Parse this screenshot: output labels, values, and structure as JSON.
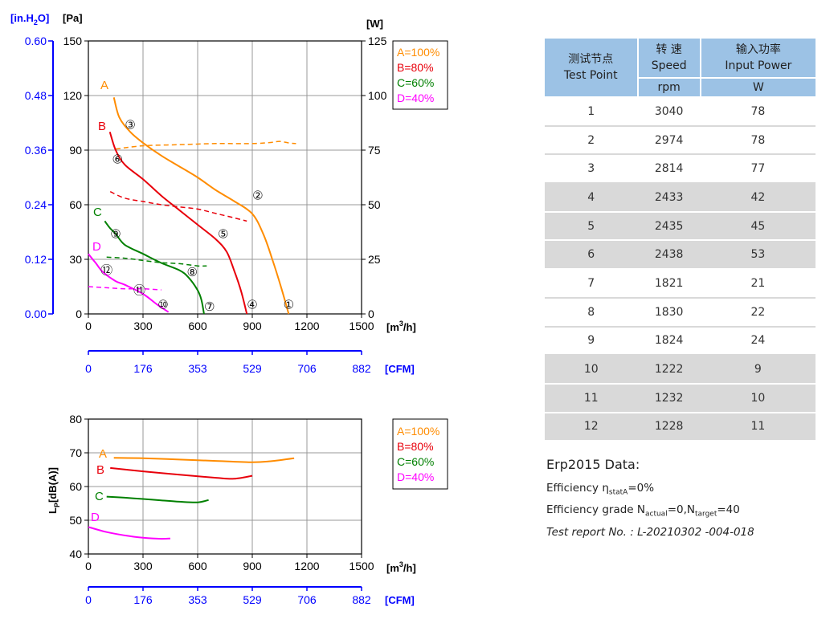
{
  "colors": {
    "A": "#ff8c00",
    "B": "#e8000b",
    "C": "#008000",
    "D": "#ff00ff",
    "axis_blue": "#0000ff",
    "header": "#9cc2e5",
    "shade": "#d9d9d9"
  },
  "chart_data": [
    {
      "type": "line",
      "title": "",
      "y_left_units": [
        "[in.H2O]",
        "[Pa]"
      ],
      "y_right_unit": "[W]",
      "x_unit": "[m3/h]",
      "x_secondary_unit": "[CFM]",
      "xlim": [
        0,
        1500
      ],
      "ylim_pa": [
        0,
        150
      ],
      "ylim_w": [
        0,
        125
      ],
      "ylim_inh2o": [
        0,
        0.6
      ],
      "x_ticks": [
        "0",
        "300",
        "600",
        "900",
        "1200",
        "1500"
      ],
      "x2_ticks": [
        "0",
        "176",
        "353",
        "529",
        "706",
        "882"
      ],
      "y_pa_ticks": [
        "0",
        "30",
        "60",
        "90",
        "120",
        "150"
      ],
      "y_in_ticks": [
        "0.00",
        "0.12",
        "0.24",
        "0.36",
        "0.48",
        "0.60"
      ],
      "y_w_ticks": [
        "0",
        "25",
        "50",
        "75",
        "100",
        "125"
      ],
      "grid": true,
      "legend": [
        "A=100%",
        "B=80%",
        "C=60%",
        "D=40%"
      ],
      "legend_position": "top-right",
      "series": [
        {
          "name": "A=100%",
          "pressure": [
            [
              140,
              119
            ],
            [
              170,
              108
            ],
            [
              230,
              100
            ],
            [
              300,
              94
            ],
            [
              400,
              87
            ],
            [
              500,
              81
            ],
            [
              600,
              75
            ],
            [
              700,
              68
            ],
            [
              800,
              62
            ],
            [
              900,
              55
            ],
            [
              960,
              44
            ],
            [
              1010,
              30
            ],
            [
              1060,
              14
            ],
            [
              1100,
              0
            ]
          ],
          "power": [
            [
              150,
              75.5
            ],
            [
              300,
              77
            ],
            [
              500,
              77.5
            ],
            [
              700,
              78
            ],
            [
              900,
              78
            ],
            [
              1000,
              78.5
            ],
            [
              1050,
              79
            ],
            [
              1100,
              78.3
            ],
            [
              1140,
              78
            ]
          ]
        },
        {
          "name": "B=80%",
          "pressure": [
            [
              118,
              100
            ],
            [
              150,
              90
            ],
            [
              200,
              82
            ],
            [
              300,
              74
            ],
            [
              400,
              65
            ],
            [
              500,
              57
            ],
            [
              600,
              49
            ],
            [
              700,
              41
            ],
            [
              760,
              34
            ],
            [
              800,
              24
            ],
            [
              840,
              12
            ],
            [
              870,
              0
            ]
          ],
          "power": [
            [
              120,
              56
            ],
            [
              200,
              53
            ],
            [
              300,
              51.5
            ],
            [
              400,
              50
            ],
            [
              500,
              49
            ],
            [
              600,
              48
            ],
            [
              700,
              46
            ],
            [
              800,
              44
            ],
            [
              870,
              42.5
            ]
          ]
        },
        {
          "name": "C=60%",
          "pressure": [
            [
              90,
              51
            ],
            [
              120,
              47
            ],
            [
              150,
              44
            ],
            [
              200,
              38
            ],
            [
              300,
              33
            ],
            [
              400,
              28
            ],
            [
              500,
              24
            ],
            [
              550,
              20
            ],
            [
              600,
              13
            ],
            [
              620,
              8
            ],
            [
              635,
              0
            ]
          ],
          "power": [
            [
              100,
              26
            ],
            [
              200,
              25.5
            ],
            [
              300,
              24.5
            ],
            [
              400,
              23.5
            ],
            [
              500,
              23
            ],
            [
              600,
              22
            ],
            [
              650,
              22
            ]
          ]
        },
        {
          "name": "D=40%",
          "pressure": [
            [
              0,
              33
            ],
            [
              40,
              28
            ],
            [
              80,
              23
            ],
            [
              150,
              18
            ],
            [
              200,
              16
            ],
            [
              300,
              11
            ],
            [
              380,
              5
            ],
            [
              440,
              1
            ]
          ],
          "power": [
            [
              0,
              12.5
            ],
            [
              100,
              12
            ],
            [
              200,
              11.5
            ],
            [
              300,
              11.5
            ],
            [
              400,
              11
            ]
          ]
        }
      ],
      "curve_labels": [
        "A",
        "B",
        "C",
        "D"
      ],
      "test_points": [
        {
          "n": "1",
          "label": "①",
          "x": 1100,
          "y": 5
        },
        {
          "n": "2",
          "label": "②",
          "x": 930,
          "y": 65
        },
        {
          "n": "3",
          "label": "③",
          "x": 230,
          "y": 104
        },
        {
          "n": "4",
          "label": "④",
          "x": 900,
          "y": 5
        },
        {
          "n": "5",
          "label": "⑤",
          "x": 740,
          "y": 44
        },
        {
          "n": "6",
          "label": "⑥",
          "x": 160,
          "y": 85
        },
        {
          "n": "7",
          "label": "⑦",
          "x": 665,
          "y": 4
        },
        {
          "n": "8",
          "label": "⑧",
          "x": 570,
          "y": 23
        },
        {
          "n": "9",
          "label": "⑨",
          "x": 150,
          "y": 44
        },
        {
          "n": "10",
          "label": "⑩",
          "x": 410,
          "y": 5
        },
        {
          "n": "11",
          "label": "⑪",
          "x": 280,
          "y": 13
        },
        {
          "n": "12",
          "label": "⑫",
          "x": 100,
          "y": 24
        }
      ]
    },
    {
      "type": "line",
      "title": "",
      "ylabel": "LP[dB(A)]",
      "x_unit": "[m3/h]",
      "x_secondary_unit": "[CFM]",
      "xlim": [
        0,
        1500
      ],
      "ylim": [
        40,
        80
      ],
      "x_ticks": [
        "0",
        "300",
        "600",
        "900",
        "1200",
        "1500"
      ],
      "x2_ticks": [
        "0",
        "176",
        "353",
        "529",
        "706",
        "882"
      ],
      "y_ticks": [
        "40",
        "50",
        "60",
        "70",
        "80"
      ],
      "grid": true,
      "legend": [
        "A=100%",
        "B=80%",
        "C=60%",
        "D=40%"
      ],
      "legend_position": "top-right",
      "series": [
        {
          "name": "A=100%",
          "values": [
            [
              140,
              68.5
            ],
            [
              300,
              68.4
            ],
            [
              500,
              68
            ],
            [
              700,
              67.6
            ],
            [
              900,
              67.2
            ],
            [
              1000,
              67.5
            ],
            [
              1130,
              68.4
            ]
          ]
        },
        {
          "name": "B=80%",
          "values": [
            [
              120,
              65.5
            ],
            [
              300,
              64.5
            ],
            [
              500,
              63.5
            ],
            [
              700,
              62.6
            ],
            [
              800,
              62.3
            ],
            [
              900,
              63.2
            ]
          ]
        },
        {
          "name": "C=60%",
          "values": [
            [
              100,
              57
            ],
            [
              200,
              56.7
            ],
            [
              300,
              56.3
            ],
            [
              400,
              55.9
            ],
            [
              500,
              55.5
            ],
            [
              600,
              55.3
            ],
            [
              660,
              56
            ]
          ]
        },
        {
          "name": "D=40%",
          "values": [
            [
              0,
              48
            ],
            [
              100,
              46.5
            ],
            [
              200,
              45.5
            ],
            [
              300,
              44.8
            ],
            [
              400,
              44.5
            ],
            [
              450,
              44.6
            ]
          ]
        }
      ],
      "curve_labels": [
        "A",
        "B",
        "C",
        "D"
      ]
    }
  ],
  "table": {
    "headers": {
      "point_cn": "测试节点",
      "point_en": "Test Point",
      "speed_cn": "转 速",
      "speed_en": "Speed",
      "speed_unit": "rpm",
      "power_cn": "输入功率",
      "power_en": "Input Power",
      "power_unit": "W"
    },
    "rows": [
      {
        "point": "1",
        "speed": "3040",
        "power": "78"
      },
      {
        "point": "2",
        "speed": "2974",
        "power": "78"
      },
      {
        "point": "3",
        "speed": "2814",
        "power": "77"
      },
      {
        "point": "4",
        "speed": "2433",
        "power": "42"
      },
      {
        "point": "5",
        "speed": "2435",
        "power": "45"
      },
      {
        "point": "6",
        "speed": "2438",
        "power": "53"
      },
      {
        "point": "7",
        "speed": "1821",
        "power": "21"
      },
      {
        "point": "8",
        "speed": "1830",
        "power": "22"
      },
      {
        "point": "9",
        "speed": "1824",
        "power": "24"
      },
      {
        "point": "10",
        "speed": "1222",
        "power": "9"
      },
      {
        "point": "11",
        "speed": "1232",
        "power": "10"
      },
      {
        "point": "12",
        "speed": "1228",
        "power": "11"
      }
    ]
  },
  "erp": {
    "title": "Erp2015  Data:",
    "efficiency_prefix": "Efficiency η",
    "efficiency_sub": "statA",
    "efficiency_value": "=0%",
    "grade_prefix": "Efficiency grade N",
    "grade_sub1": "actual",
    "grade_mid": "=0,N",
    "grade_sub2": "target",
    "grade_value": "=40",
    "report": "Test report No. : L-20210302 -004-018"
  }
}
